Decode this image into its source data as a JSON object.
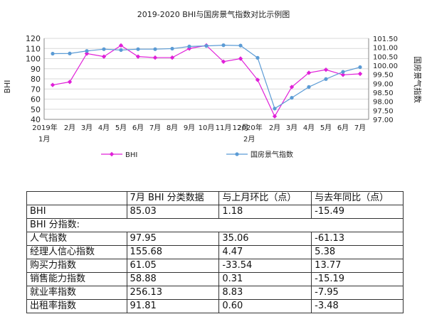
{
  "chart_data": {
    "type": "line",
    "title": "2019-2020 BHI与国房景气指数对比示例图",
    "categories": [
      "2019年\n1月",
      "2月",
      "3月",
      "4月",
      "5月",
      "6月",
      "7月",
      "8月",
      "9月",
      "10月",
      "11月",
      "12月",
      "2020年\n2月",
      "2月",
      "3月",
      "4月",
      "5月",
      "6月",
      "7月"
    ],
    "y_left": {
      "label": "BHI",
      "min": 40,
      "max": 120,
      "ticks": [
        "120",
        "110",
        "100",
        "90",
        "80",
        "70",
        "60",
        "50",
        "40"
      ]
    },
    "y_right": {
      "label": "国房景气指数",
      "min": 97.0,
      "max": 101.5,
      "ticks": [
        "101.50",
        "101.00",
        "100.50",
        "100.00",
        "99.50",
        "99.00",
        "98.50",
        "98.00",
        "97.50",
        "97.00"
      ]
    },
    "series": [
      {
        "name": "BHI",
        "axis": "left",
        "color": "#e020d8",
        "values": [
          74,
          77,
          105,
          102,
          113,
          102,
          101,
          101,
          110,
          113,
          97,
          100,
          79,
          43,
          72,
          86,
          89,
          84,
          85
        ]
      },
      {
        "name": "国房景气指数",
        "axis": "right",
        "color": "#5b9bd5",
        "values": [
          100.65,
          100.66,
          100.8,
          100.9,
          100.85,
          100.9,
          100.9,
          100.93,
          101.05,
          101.08,
          101.12,
          101.1,
          100.42,
          97.6,
          98.2,
          98.8,
          99.24,
          99.64,
          99.9
        ]
      }
    ],
    "legend_position": "bottom"
  },
  "table": {
    "header": [
      "",
      "7月 BHI 分类数据",
      "与上月环比（点）",
      "与去年同比（点）"
    ],
    "rows": [
      {
        "cells": [
          "BHI",
          "85.03",
          "1.18",
          "-15.49"
        ]
      },
      {
        "cells": [
          "BHI 分指数:"
        ],
        "span": true
      },
      {
        "cells": [
          "人气指数",
          "97.95",
          "35.06",
          "-61.13"
        ]
      },
      {
        "cells": [
          "经理人信心指数",
          "155.68",
          "4.47",
          "5.38"
        ]
      },
      {
        "cells": [
          "购买力指数",
          "61.05",
          "-33.54",
          "13.77"
        ]
      },
      {
        "cells": [
          "销售能力指数",
          "58.88",
          "0.31",
          "-15.19"
        ]
      },
      {
        "cells": [
          "就业率指数",
          "256.13",
          "8.83",
          "-7.95"
        ]
      },
      {
        "cells": [
          "出租率指数",
          "91.81",
          "0.60",
          "-3.48"
        ]
      }
    ]
  }
}
